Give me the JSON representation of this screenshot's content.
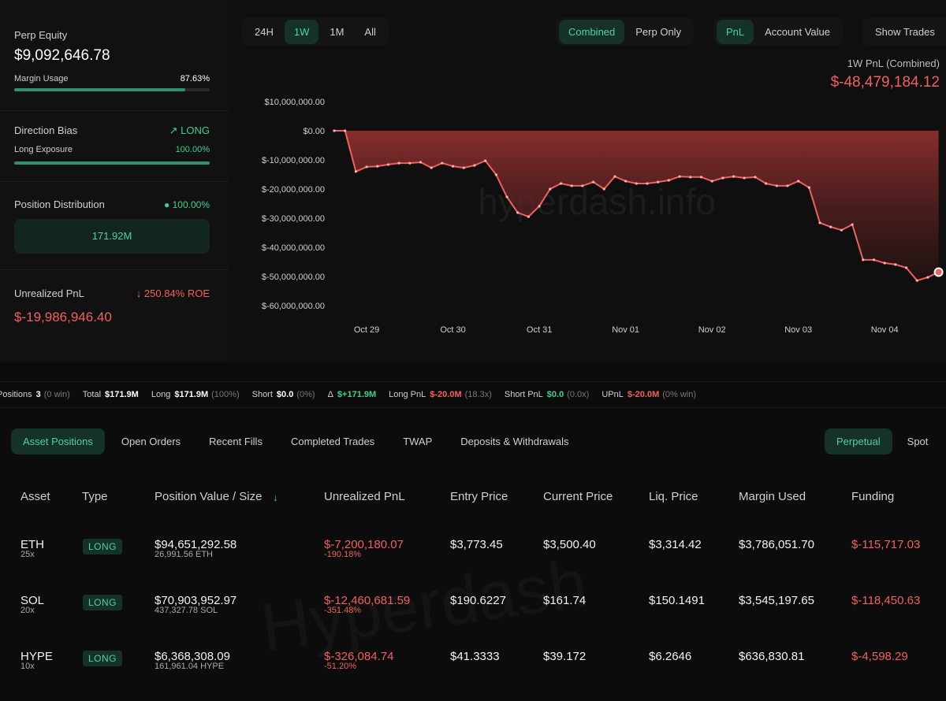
{
  "time_ranges": {
    "options": [
      "24H",
      "1W",
      "1M",
      "All"
    ],
    "active": 1
  },
  "view_modes": {
    "options": [
      "Combined",
      "Perp Only"
    ],
    "active": 0
  },
  "metrics": {
    "options": [
      "PnL",
      "Account Value"
    ],
    "active": 0
  },
  "show_trades": "Show Trades",
  "sidebar": {
    "perp_equity": {
      "label": "Perp Equity",
      "value": "$9,092,646.78"
    },
    "margin_usage": {
      "label": "Margin Usage",
      "value": 87.63,
      "value_label": "87.63%"
    },
    "direction_bias": {
      "label": "Direction Bias",
      "value": "LONG"
    },
    "long_exposure": {
      "label": "Long Exposure",
      "value": 100,
      "value_label": "100.00%"
    },
    "position_distribution": {
      "label": "Position Distribution",
      "share": 100,
      "share_label": "100.00%",
      "bar_label": "171.92M"
    },
    "unrealized_pnl": {
      "label": "Unrealized PnL",
      "roe": "250.84% ROE",
      "value": "$-19,986,946.40"
    }
  },
  "chart_data": {
    "type": "line",
    "title": "1W PnL (Combined)",
    "subtitle": "$-48,479,184.12",
    "watermark": "hyperdash.info",
    "color": "#f0605e",
    "categories": [
      null,
      null,
      null,
      "Oct 29",
      null,
      null,
      null,
      null,
      null,
      null,
      null,
      "Oct 30",
      null,
      null,
      null,
      null,
      null,
      null,
      null,
      "Oct 31",
      null,
      null,
      null,
      null,
      null,
      null,
      null,
      "Nov 01",
      null,
      null,
      null,
      null,
      null,
      null,
      null,
      "Nov 02",
      null,
      null,
      null,
      null,
      null,
      null,
      null,
      "Nov 03",
      null,
      null,
      null,
      null,
      null,
      null,
      null,
      "Nov 04",
      null,
      null,
      null,
      null,
      null
    ],
    "values": [
      0,
      0,
      -14000000,
      -12400000,
      -12200000,
      -11600000,
      -11100000,
      -11100000,
      -10800000,
      -12700000,
      -11100000,
      -12200000,
      -12700000,
      -11900000,
      -10300000,
      -15100000,
      -22700000,
      -28100000,
      -29500000,
      -25900000,
      -20000000,
      -18100000,
      -18900000,
      -18900000,
      -17600000,
      -20000000,
      -15700000,
      -17300000,
      -18100000,
      -18100000,
      -17600000,
      -17000000,
      -15700000,
      -15900000,
      -15900000,
      -17300000,
      -16200000,
      -15700000,
      -16200000,
      -15900000,
      -18100000,
      -18900000,
      -18900000,
      -17300000,
      -19500000,
      -31600000,
      -33000000,
      -34100000,
      -32200000,
      -44300000,
      -44300000,
      -45400000,
      -45900000,
      -47000000,
      -51400000,
      -50300000,
      -48500000
    ],
    "ylim": [
      -60000000,
      10000000
    ],
    "yticks": [
      {
        "value": 10000000,
        "label": "$10,000,000.00"
      },
      {
        "value": 0,
        "label": "$0.00"
      },
      {
        "value": -10000000,
        "label": "$-10,000,000.00"
      },
      {
        "value": -20000000,
        "label": "$-20,000,000.00"
      },
      {
        "value": -30000000,
        "label": "$-30,000,000.00"
      },
      {
        "value": -40000000,
        "label": "$-40,000,000.00"
      },
      {
        "value": -50000000,
        "label": "$-50,000,000.00"
      },
      {
        "value": -60000000,
        "label": "$-60,000,000.00"
      }
    ],
    "grid": false
  },
  "summary": [
    {
      "label": "Positions",
      "value": "3",
      "note": "(0 win)",
      "color": "#ffffff"
    },
    {
      "label": "Total",
      "value": "$171.9M",
      "color": "#ffffff"
    },
    {
      "label": "Long",
      "value": "$171.9M",
      "note": "(100%)",
      "color": "#ffffff"
    },
    {
      "label": "Short",
      "value": "$0.0",
      "note": "(0%)",
      "color": "#ffffff"
    },
    {
      "label": "Δ",
      "value": "$+171.9M",
      "color": "#3ecf8e"
    },
    {
      "label": "Long PnL",
      "value": "$-20.0M",
      "note": "(18.3x)",
      "color": "#f0605e"
    },
    {
      "label": "Short PnL",
      "value": "$0.0",
      "note": "(0.0x)",
      "color": "#3ecf8e"
    },
    {
      "label": "UPnL",
      "value": "$-20.0M",
      "note": "(0% win)",
      "color": "#f0605e"
    }
  ],
  "tabs": {
    "options": [
      "Asset Positions",
      "Open Orders",
      "Recent Fills",
      "Completed Trades",
      "TWAP",
      "Deposits & Withdrawals"
    ],
    "active": 0
  },
  "market_tabs": {
    "options": [
      "Perpetual",
      "Spot"
    ],
    "active": 0
  },
  "table": {
    "watermark": "Hyperdash",
    "columns": [
      "Asset",
      "Type",
      "Position Value / Size",
      "Unrealized PnL",
      "Entry Price",
      "Current Price",
      "Liq. Price",
      "Margin Used",
      "Funding"
    ],
    "rows": [
      {
        "asset": "ETH",
        "leverage": "25x",
        "type": "LONG",
        "value": "$94,651,292.58",
        "size": "26,991.56 ETH",
        "upnl": "$-7,200,180.07",
        "roe": "-190.18%",
        "entry": "$3,773.45",
        "current": "$3,500.40",
        "liq": "$3,314.42",
        "margin": "$3,786,051.70",
        "funding": "$-115,717.03"
      },
      {
        "asset": "SOL",
        "leverage": "20x",
        "type": "LONG",
        "value": "$70,903,952.97",
        "size": "437,327.78 SOL",
        "upnl": "$-12,460,681.59",
        "roe": "-351.48%",
        "entry": "$190.6227",
        "current": "$161.74",
        "liq": "$150.1491",
        "margin": "$3,545,197.65",
        "funding": "$-118,450.63"
      },
      {
        "asset": "HYPE",
        "leverage": "10x",
        "type": "LONG",
        "value": "$6,368,308.09",
        "size": "161,961.04 HYPE",
        "upnl": "$-326,084.74",
        "roe": "-51.20%",
        "entry": "$41.3333",
        "current": "$39.172",
        "liq": "$6.2646",
        "margin": "$636,830.81",
        "funding": "$-4,598.29"
      }
    ]
  }
}
